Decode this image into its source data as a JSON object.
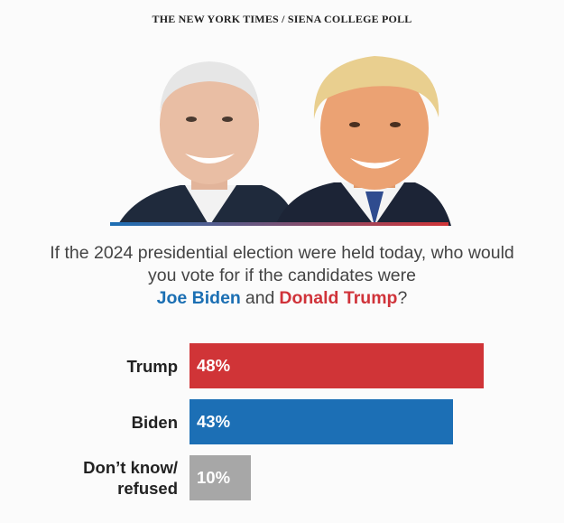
{
  "chart_data": {
    "type": "bar",
    "title": "THE NEW YORK TIMES / SIENA COLLEGE POLL",
    "question": {
      "text": "If the 2024 presidential election were held today, who would you vote for if the candidates were",
      "name1": "Joe Biden",
      "joiner": "and",
      "name2": "Donald Trump",
      "end": "?"
    },
    "categories": [
      "Trump",
      "Biden",
      "Don’t know/\nrefused"
    ],
    "values": [
      48,
      43,
      10
    ],
    "value_labels": [
      "48%",
      "43%",
      "10%"
    ],
    "colors": [
      "#d03437",
      "#1c6fb5",
      "#a7a7a7"
    ]
  }
}
